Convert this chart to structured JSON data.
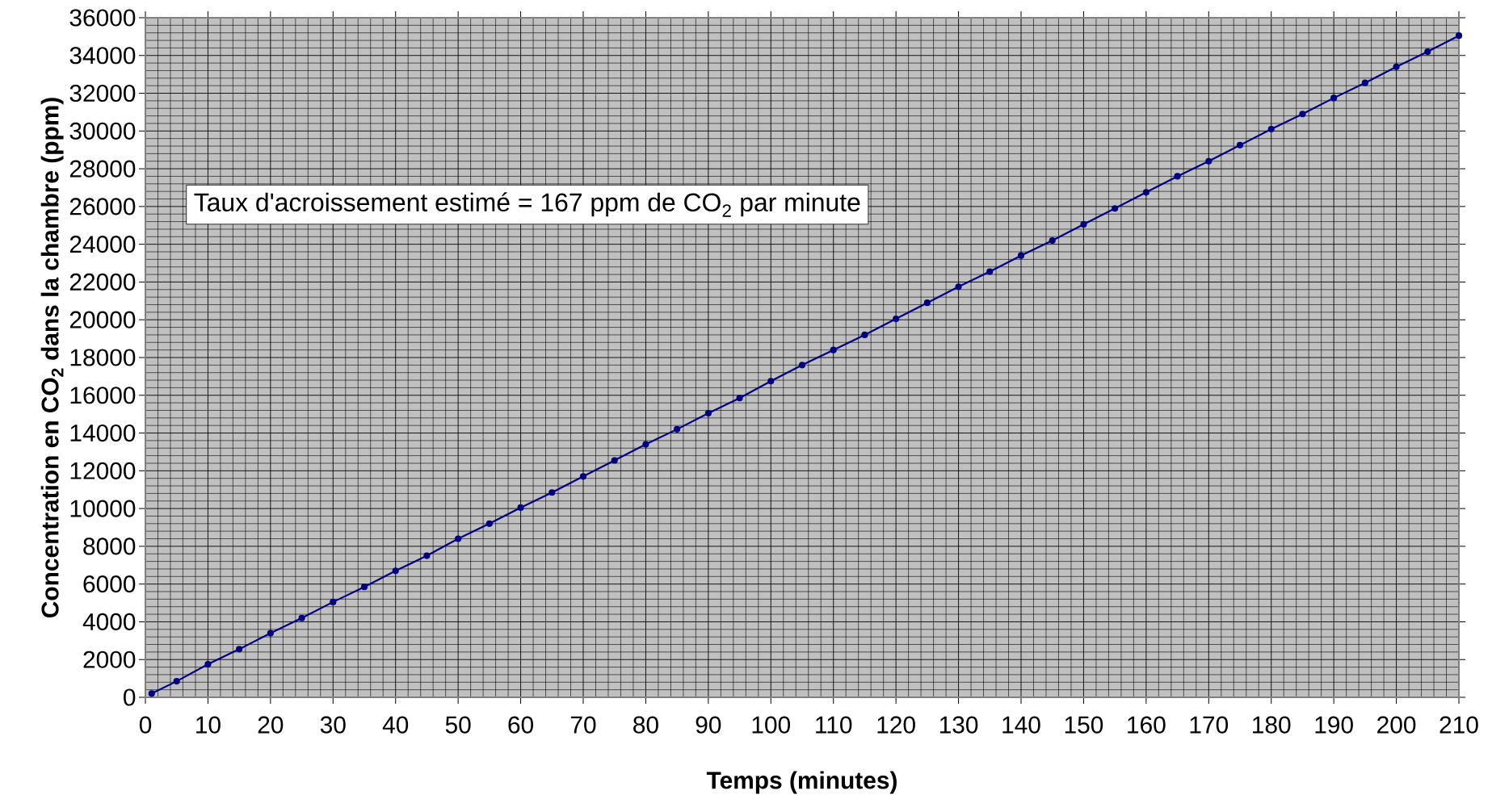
{
  "chart_data": {
    "type": "line",
    "xlabel": "Temps (minutes)",
    "ylabel": "Concentration en CO$_{2}$ dans la chambre (ppm)",
    "annotations": [
      "Taux d'acroissement estimé = 167 ppm de CO$_{2}$ par minute"
    ],
    "x": [
      1,
      5,
      10,
      15,
      20,
      25,
      30,
      35,
      40,
      45,
      50,
      55,
      60,
      65,
      70,
      75,
      80,
      85,
      90,
      95,
      100,
      105,
      110,
      115,
      120,
      125,
      130,
      135,
      140,
      145,
      150,
      155,
      160,
      165,
      170,
      175,
      180,
      185,
      190,
      195,
      200,
      205,
      210
    ],
    "series": [
      {
        "color": "#000080",
        "values": [
          200,
          850,
          1750,
          2550,
          3400,
          4200,
          5050,
          5850,
          6700,
          7500,
          8400,
          9200,
          10050,
          10850,
          11700,
          12550,
          13400,
          14200,
          15050,
          15850,
          16750,
          17600,
          18400,
          19200,
          20050,
          20900,
          21750,
          22550,
          23400,
          24200,
          25050,
          25900,
          26750,
          27600,
          28400,
          29250,
          30100,
          30900,
          31750,
          32550,
          33400,
          34200,
          35050
        ]
      }
    ],
    "xlim": [
      0,
      210
    ],
    "ylim": [
      0,
      36000
    ],
    "xticks": [
      0,
      10,
      20,
      30,
      40,
      50,
      60,
      70,
      80,
      90,
      100,
      110,
      120,
      130,
      140,
      150,
      160,
      170,
      180,
      190,
      200,
      210
    ],
    "yticks": [
      0,
      2000,
      4000,
      6000,
      8000,
      10000,
      12000,
      14000,
      16000,
      18000,
      20000,
      22000,
      24000,
      26000,
      28000,
      30000,
      32000,
      34000,
      36000
    ],
    "grid": true,
    "marker": "circle",
    "line_style": "solid"
  }
}
